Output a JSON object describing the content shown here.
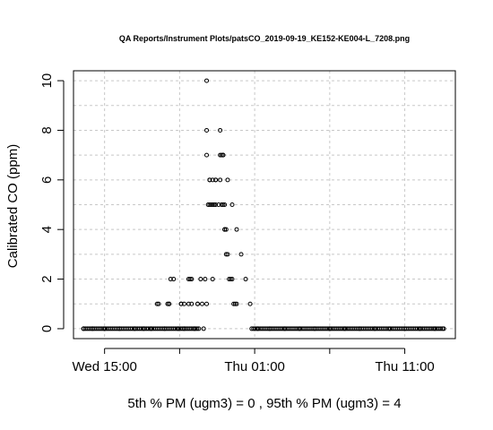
{
  "chart_data": {
    "type": "scatter",
    "title": "QA Reports/Instrument Plots/patsCO_2019-09-19_KE152-KE004-L_7208.png",
    "ylabel": "Calibrated CO (ppm)",
    "xlabel": "5th % PM (ugm3) =  0 , 95th % PM (ugm3)  =  4",
    "x_ticks": [
      {
        "label": "Wed 15:00",
        "hours": 15
      },
      {
        "label": "Thu 01:00",
        "hours": 25
      },
      {
        "label": "Thu 11:00",
        "hours": 35
      }
    ],
    "y_ticks": [
      0,
      2,
      4,
      6,
      8,
      10
    ],
    "xlim_hours": [
      12.93,
      38.37
    ],
    "ylim": [
      -0.4,
      10.4
    ],
    "grid": true,
    "marker": "open-circle",
    "series": [
      {
        "x_hours": [
          13.6,
          14.2,
          15.0,
          16.0,
          17.0,
          17.6,
          18.1,
          18.6,
          19.0,
          19.3,
          19.6,
          19.9,
          20.1,
          20.3,
          20.6,
          20.8,
          21.0,
          21.2,
          21.4,
          21.6,
          21.8,
          22.0,
          22.2,
          22.4,
          22.6,
          22.9,
          23.2,
          23.5,
          23.8,
          24.1,
          24.4,
          24.7,
          25.2,
          26.0,
          27.0,
          28.0,
          29.0,
          30.0,
          31.0,
          32.0,
          33.0,
          34.0,
          35.0,
          36.0,
          37.0,
          37.6
        ],
        "y": [
          0,
          0,
          0,
          0,
          0,
          0,
          0,
          1,
          0,
          1,
          2,
          0,
          1,
          0,
          2,
          1,
          0,
          1,
          2,
          0,
          1,
          5,
          2,
          6,
          5,
          7,
          6,
          5,
          4,
          3,
          2,
          1,
          0,
          0,
          0,
          0,
          0,
          0,
          0,
          0,
          0,
          0,
          0,
          0,
          0,
          0
        ]
      }
    ],
    "extra_points": [
      {
        "x_hours": 21.8,
        "y": 10
      },
      {
        "x_hours": 21.8,
        "y": 8
      },
      {
        "x_hours": 22.7,
        "y": 8
      },
      {
        "x_hours": 21.8,
        "y": 7
      },
      {
        "x_hours": 22.7,
        "y": 7
      },
      {
        "x_hours": 22.0,
        "y": 6
      },
      {
        "x_hours": 22.4,
        "y": 6
      },
      {
        "x_hours": 22.7,
        "y": 6
      },
      {
        "x_hours": 21.9,
        "y": 5
      },
      {
        "x_hours": 22.2,
        "y": 5
      },
      {
        "x_hours": 22.4,
        "y": 5
      },
      {
        "x_hours": 22.9,
        "y": 5
      },
      {
        "x_hours": 23.0,
        "y": 4
      },
      {
        "x_hours": 23.1,
        "y": 3
      },
      {
        "x_hours": 23.3,
        "y": 2
      },
      {
        "x_hours": 23.5,
        "y": 2
      },
      {
        "x_hours": 23.6,
        "y": 1
      },
      {
        "x_hours": 23.8,
        "y": 1
      },
      {
        "x_hours": 19.2,
        "y": 1
      },
      {
        "x_hours": 19.4,
        "y": 2
      },
      {
        "x_hours": 20.3,
        "y": 1
      },
      {
        "x_hours": 20.6,
        "y": 1
      },
      {
        "x_hours": 21.2,
        "y": 1
      },
      {
        "x_hours": 21.5,
        "y": 1
      },
      {
        "x_hours": 21.7,
        "y": 2
      },
      {
        "x_hours": 20.8,
        "y": 2
      },
      {
        "x_hours": 18.5,
        "y": 1
      }
    ]
  }
}
